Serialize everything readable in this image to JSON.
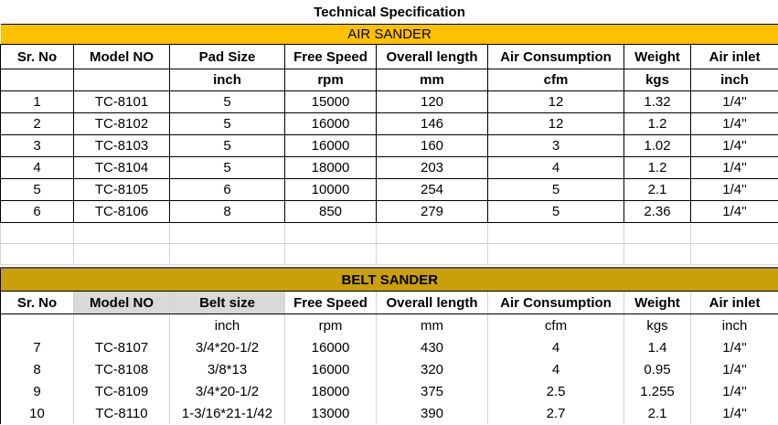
{
  "title": "Technical Specification",
  "air_sander": {
    "section_title": "AIR SANDER",
    "headers": [
      "Sr. No",
      "Model NO",
      "Pad Size",
      "Free Speed",
      "Overall length",
      "Air Consumption",
      "Weight",
      "Air inlet"
    ],
    "units": [
      "",
      "",
      "inch",
      "rpm",
      "mm",
      "cfm",
      "kgs",
      "inch"
    ],
    "rows": [
      [
        "1",
        "TC-8101",
        "5",
        "15000",
        "120",
        "12",
        "1.32",
        "1/4''"
      ],
      [
        "2",
        "TC-8102",
        "5",
        "16000",
        "146",
        "12",
        "1.2",
        "1/4''"
      ],
      [
        "3",
        "TC-8103",
        "5",
        "16000",
        "160",
        "3",
        "1.02",
        "1/4''"
      ],
      [
        "4",
        "TC-8104",
        "5",
        "18000",
        "203",
        "4",
        "1.2",
        "1/4''"
      ],
      [
        "5",
        "TC-8105",
        "6",
        "10000",
        "254",
        "5",
        "2.1",
        "1/4''"
      ],
      [
        "6",
        "TC-8106",
        "8",
        "850",
        "279",
        "5",
        "2.36",
        "1/4''"
      ]
    ]
  },
  "belt_sander": {
    "section_title": "BELT SANDER",
    "headers": [
      "Sr. No",
      "Model NO",
      "Belt size",
      "Free Speed",
      "Overall length",
      "Air Consumption",
      "Weight",
      "Air inlet"
    ],
    "units": [
      "",
      "",
      "inch",
      "rpm",
      "mm",
      "cfm",
      "kgs",
      "inch"
    ],
    "rows": [
      [
        "7",
        "TC-8107",
        "3/4*20-1/2",
        "16000",
        "430",
        "4",
        "1.4",
        "1/4''"
      ],
      [
        "8",
        "TC-8108",
        "3/8*13",
        "16000",
        "320",
        "4",
        "0.95",
        "1/4''"
      ],
      [
        "9",
        "TC-8109",
        "3/4*20-1/2",
        "18000",
        "375",
        "2.5",
        "1.255",
        "1/4''"
      ],
      [
        "10",
        "TC-8110",
        "1-3/16*21-1/42",
        "13000",
        "390",
        "2.7",
        "2.1",
        "1/4''"
      ]
    ]
  },
  "colors": {
    "air_band": "#ffc000",
    "belt_band": "#c9a00a",
    "header_gray": "#d9d9d9"
  }
}
